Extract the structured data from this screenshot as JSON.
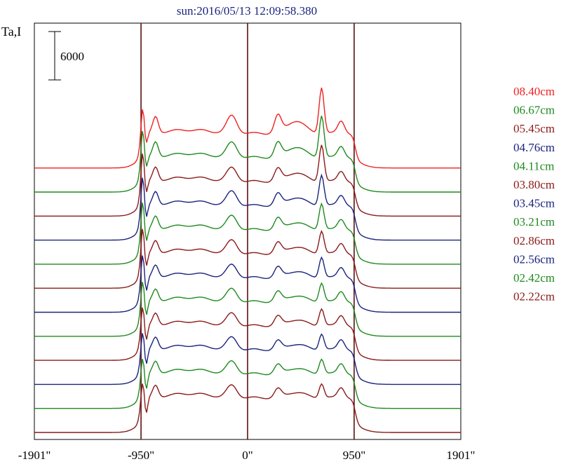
{
  "chart_data": {
    "type": "line",
    "title": "sun:2016/05/13 12:09:58.380",
    "ylabel": "Ta,I",
    "scale_bar_label": "6000",
    "x_ticks": [
      "-1901\"",
      "-950\"",
      "0\"",
      "950\"",
      "1901\""
    ],
    "x_tick_values": [
      -1901,
      -950,
      0,
      950,
      1901
    ],
    "xlim": [
      -1901,
      1901
    ],
    "vertical_lines": [
      -950,
      0,
      950
    ],
    "grid": false,
    "legend_position": "right",
    "series": [
      {
        "name": "08.40cm",
        "color": "#ee2222",
        "offset": 11,
        "peaks": {
          "limb950": 3600,
          "dip": 1500,
          "p800": 3600,
          "p500": 2400,
          "pm140": 3900,
          "p270": 3800,
          "p430": 3100,
          "p660": 8200,
          "p830": 2900
        }
      },
      {
        "name": "06.67cm",
        "color": "#1f8a1f",
        "offset": 10,
        "peaks": {
          "limb950": 3900,
          "dip": 1500,
          "p800": 3300,
          "p500": 2600,
          "pm140": 3300,
          "p270": 3100,
          "p430": 2600,
          "p660": 7500,
          "p830": 2600
        }
      },
      {
        "name": "05.45cm",
        "color": "#8b1a1a",
        "offset": 9,
        "peaks": {
          "limb950": 4100,
          "dip": 1700,
          "p800": 3000,
          "p500": 2800,
          "pm140": 3000,
          "p270": 2700,
          "p430": 2200,
          "p660": 6600,
          "p830": 2400
        }
      },
      {
        "name": "04.76cm",
        "color": "#1a237e",
        "offset": 8,
        "peaks": {
          "limb950": 4100,
          "dip": 1800,
          "p800": 2900,
          "p500": 2900,
          "pm140": 3100,
          "p270": 2500,
          "p430": 2000,
          "p660": 5500,
          "p830": 2400
        }
      },
      {
        "name": "04.11cm",
        "color": "#1f8a1f",
        "offset": 7,
        "peaks": {
          "limb950": 4000,
          "dip": 1800,
          "p800": 2800,
          "p500": 2900,
          "pm140": 3000,
          "p270": 2400,
          "p430": 1800,
          "p660": 4700,
          "p830": 2400
        }
      },
      {
        "name": "03.80cm",
        "color": "#8b1a1a",
        "offset": 6,
        "peaks": {
          "limb950": 3700,
          "dip": 1900,
          "p800": 2700,
          "p500": 2900,
          "pm140": 2900,
          "p270": 2300,
          "p430": 1700,
          "p660": 4100,
          "p830": 2400
        }
      },
      {
        "name": "03.45cm",
        "color": "#1a237e",
        "offset": 5,
        "peaks": {
          "limb950": 3400,
          "dip": 2000,
          "p800": 2600,
          "p500": 2900,
          "pm140": 2800,
          "p270": 2200,
          "p430": 1600,
          "p660": 3700,
          "p830": 2400
        }
      },
      {
        "name": "03.21cm",
        "color": "#1f8a1f",
        "offset": 4,
        "peaks": {
          "limb950": 3100,
          "dip": 2000,
          "p800": 2600,
          "p500": 2900,
          "pm140": 2800,
          "p270": 2100,
          "p430": 1500,
          "p660": 3400,
          "p830": 2400
        }
      },
      {
        "name": "02.86cm",
        "color": "#8b1a1a",
        "offset": 3,
        "peaks": {
          "limb950": 2900,
          "dip": 2100,
          "p800": 2600,
          "p500": 2900,
          "pm140": 2700,
          "p270": 2000,
          "p430": 1500,
          "p660": 3100,
          "p830": 2400
        }
      },
      {
        "name": "02.56cm",
        "color": "#1a237e",
        "offset": 2,
        "peaks": {
          "limb950": 2700,
          "dip": 2100,
          "p800": 2600,
          "p500": 2900,
          "pm140": 2700,
          "p270": 1900,
          "p430": 1400,
          "p660": 2900,
          "p830": 2400
        }
      },
      {
        "name": "02.42cm",
        "color": "#1f8a1f",
        "offset": 1,
        "peaks": {
          "limb950": 2500,
          "dip": 2200,
          "p800": 2600,
          "p500": 2900,
          "pm140": 2700,
          "p270": 1900,
          "p430": 1400,
          "p660": 2700,
          "p830": 2400
        }
      },
      {
        "name": "02.22cm",
        "color": "#8b1a1a",
        "offset": 0,
        "peaks": {
          "limb950": 2400,
          "dip": 2200,
          "p800": 2600,
          "p500": 2900,
          "pm140": 2700,
          "p270": 1900,
          "p430": 1400,
          "p660": 2600,
          "p830": 2400
        }
      }
    ]
  }
}
